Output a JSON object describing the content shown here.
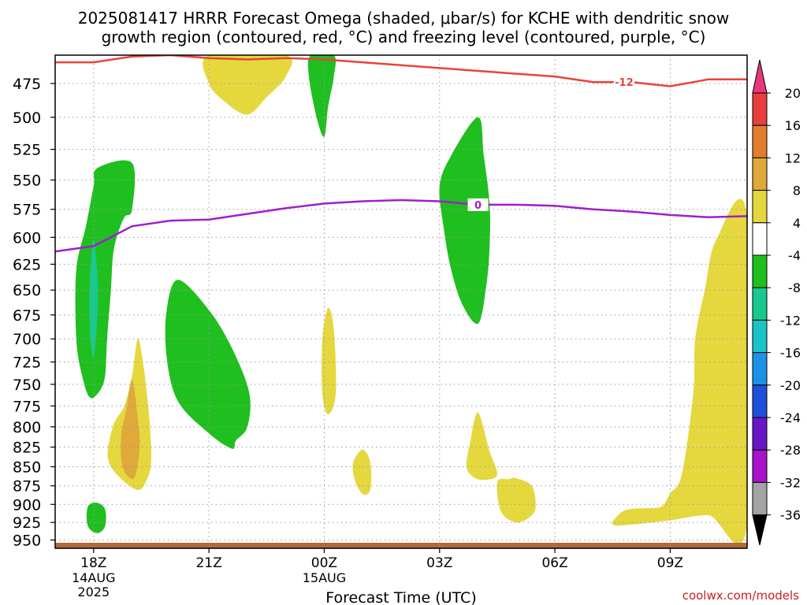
{
  "chart_data": {
    "type": "heatmap",
    "title": {
      "line1": "2025081417 HRRR Forecast Omega (shaded, μbar/s) for KCHE with dendritic snow",
      "line2": "growth region (contoured, red, °C) and freezing level (contoured, purple, °C)"
    },
    "xlabel": "Forecast Time (UTC)",
    "ylabel": "",
    "x_ticks": [
      "18Z",
      "21Z",
      "00Z",
      "03Z",
      "06Z",
      "09Z"
    ],
    "x_date_labels": [
      {
        "tick": "18Z",
        "lines": [
          "14AUG",
          "2025"
        ]
      },
      {
        "tick": "00Z",
        "lines": [
          "15AUG"
        ]
      }
    ],
    "xlim_hours": [
      -1,
      17
    ],
    "y_ticks": [
      475,
      500,
      525,
      550,
      575,
      600,
      625,
      650,
      675,
      700,
      725,
      750,
      775,
      800,
      825,
      850,
      875,
      900,
      925,
      950
    ],
    "ylim_mb": [
      455,
      962
    ],
    "y_scale": "log",
    "grid": true,
    "colorbar": {
      "labels": [
        "20",
        "16",
        "12",
        "8",
        "4",
        "-4",
        "-8",
        "-12",
        "-16",
        "-20",
        "-24",
        "-28",
        "-32",
        "-36"
      ],
      "colors": [
        "#e8387a",
        "#e83e3e",
        "#e37d2d",
        "#dfa93c",
        "#e5d83e",
        "#ffffff",
        "#1fbf1f",
        "#18c98f",
        "#19c3c8",
        "#1a93e6",
        "#1f4fd9",
        "#6a16c6",
        "#a812c9",
        "#a3a3a3",
        "#000000"
      ]
    },
    "series": [
      {
        "name": "-12",
        "color": "#e8443a",
        "label_at_hour": 13.8,
        "points": [
          [
            -1,
            460
          ],
          [
            0,
            460
          ],
          [
            1,
            456
          ],
          [
            2,
            455
          ],
          [
            3,
            457
          ],
          [
            4,
            458
          ],
          [
            5,
            457
          ],
          [
            6,
            458
          ],
          [
            7,
            460
          ],
          [
            8,
            462
          ],
          [
            9,
            464
          ],
          [
            10,
            466
          ],
          [
            11,
            468
          ],
          [
            12,
            470
          ],
          [
            13,
            474
          ],
          [
            14,
            474
          ],
          [
            15,
            477
          ],
          [
            16,
            472
          ],
          [
            17,
            472
          ]
        ]
      },
      {
        "name": "0",
        "color": "#a11ecc",
        "label_at_hour": 10.0,
        "points": [
          [
            -1,
            613
          ],
          [
            0,
            608
          ],
          [
            1,
            590
          ],
          [
            2,
            585
          ],
          [
            3,
            584
          ],
          [
            4,
            579
          ],
          [
            5,
            574
          ],
          [
            6,
            570
          ],
          [
            7,
            568
          ],
          [
            8,
            567
          ],
          [
            9,
            568
          ],
          [
            10,
            571
          ],
          [
            11,
            571
          ],
          [
            12,
            572
          ],
          [
            13,
            575
          ],
          [
            14,
            577
          ],
          [
            15,
            580
          ],
          [
            16,
            582
          ],
          [
            17,
            581
          ]
        ]
      }
    ],
    "shaded_regions": [
      {
        "value": 4,
        "color": "#e5d83e",
        "pts": [
          [
            3,
            455
          ],
          [
            5,
            455
          ],
          [
            5,
            470
          ],
          [
            4.5,
            485
          ],
          [
            4,
            498
          ],
          [
            3.4,
            488
          ],
          [
            3,
            475
          ]
        ]
      },
      {
        "value": 4,
        "color": "#e5d83e",
        "pts": [
          [
            1.15,
            700
          ],
          [
            1.3,
            730
          ],
          [
            1.45,
            790
          ],
          [
            1.5,
            840
          ],
          [
            1.4,
            865
          ],
          [
            1.1,
            880
          ],
          [
            0.4,
            845
          ],
          [
            0.5,
            800
          ],
          [
            0.8,
            775
          ],
          [
            1.0,
            740
          ]
        ]
      },
      {
        "value": 8,
        "color": "#dfa93c",
        "pts": [
          [
            1.0,
            745
          ],
          [
            1.15,
            790
          ],
          [
            1.2,
            825
          ],
          [
            1.05,
            865
          ],
          [
            0.75,
            850
          ],
          [
            0.72,
            810
          ],
          [
            0.85,
            780
          ]
        ]
      },
      {
        "value": 4,
        "color": "#e5d83e",
        "pts": [
          [
            6.1,
            668
          ],
          [
            6.25,
            690
          ],
          [
            6.3,
            760
          ],
          [
            6.1,
            785
          ],
          [
            5.95,
            760
          ],
          [
            5.95,
            700
          ]
        ]
      },
      {
        "value": 4,
        "color": "#e5d83e",
        "pts": [
          [
            7.0,
            828
          ],
          [
            7.2,
            845
          ],
          [
            7.2,
            880
          ],
          [
            7.0,
            886
          ],
          [
            6.8,
            868
          ],
          [
            6.75,
            845
          ]
        ]
      },
      {
        "value": 4,
        "color": "#e5d83e",
        "pts": [
          [
            10.0,
            783
          ],
          [
            10.3,
            830
          ],
          [
            10.5,
            860
          ],
          [
            10.2,
            867
          ],
          [
            9.9,
            864
          ],
          [
            9.7,
            850
          ],
          [
            9.8,
            818
          ]
        ]
      },
      {
        "value": 4,
        "color": "#e5d83e",
        "pts": [
          [
            11.0,
            865
          ],
          [
            11.4,
            875
          ],
          [
            11.5,
            900
          ],
          [
            11.4,
            915
          ],
          [
            11.0,
            925
          ],
          [
            10.6,
            910
          ],
          [
            10.5,
            870
          ],
          [
            10.8,
            866
          ]
        ]
      },
      {
        "value": 4,
        "color": "#e5d83e",
        "pts": [
          [
            17,
            582
          ],
          [
            16.2,
            602
          ],
          [
            15.9,
            650
          ],
          [
            15.65,
            700
          ],
          [
            15.6,
            760
          ],
          [
            15.3,
            860
          ],
          [
            15.0,
            885
          ],
          [
            14.8,
            902
          ],
          [
            14.5,
            905
          ],
          [
            14.0,
            906
          ],
          [
            13.7,
            912
          ],
          [
            13.5,
            928
          ],
          [
            14.0,
            928
          ],
          [
            15.0,
            922
          ],
          [
            16.0,
            915
          ],
          [
            17,
            928
          ]
        ]
      },
      {
        "value": -4,
        "color": "#1fbf1f",
        "pts": [
          [
            0.1,
            540
          ],
          [
            1.0,
            536
          ],
          [
            1.0,
            575
          ],
          [
            0.8,
            582
          ],
          [
            0.6,
            600
          ],
          [
            0.5,
            618
          ],
          [
            0.45,
            650
          ],
          [
            0.35,
            700
          ],
          [
            0.3,
            740
          ],
          [
            0.15,
            758
          ],
          [
            -0.1,
            765
          ],
          [
            -0.3,
            740
          ],
          [
            -0.45,
            700
          ],
          [
            -0.45,
            630
          ],
          [
            -0.2,
            590
          ],
          [
            0.0,
            555
          ]
        ]
      },
      {
        "value": -8,
        "color": "#18c98f",
        "pts": [
          [
            0.0,
            602
          ],
          [
            0.1,
            635
          ],
          [
            0.1,
            675
          ],
          [
            0.0,
            720
          ],
          [
            -0.1,
            690
          ],
          [
            -0.1,
            640
          ]
        ]
      },
      {
        "value": -4,
        "color": "#1fbf1f",
        "pts": [
          [
            0.1,
            898
          ],
          [
            0.3,
            907
          ],
          [
            0.3,
            930
          ],
          [
            0.1,
            940
          ],
          [
            -0.15,
            930
          ],
          [
            -0.15,
            903
          ]
        ]
      },
      {
        "value": -4,
        "color": "#1fbf1f",
        "pts": [
          [
            1.9,
            670
          ],
          [
            2.2,
            640
          ],
          [
            3.0,
            670
          ],
          [
            3.6,
            710
          ],
          [
            4.05,
            760
          ],
          [
            4.0,
            800
          ],
          [
            3.7,
            817
          ],
          [
            3.6,
            827
          ],
          [
            3.0,
            808
          ],
          [
            2.2,
            770
          ],
          [
            1.9,
            720
          ]
        ]
      },
      {
        "value": -4,
        "color": "#1fbf1f",
        "pts": [
          [
            5.65,
            455
          ],
          [
            6.25,
            455
          ],
          [
            6.25,
            470
          ],
          [
            6.1,
            492
          ],
          [
            6.0,
            515
          ],
          [
            5.8,
            500
          ],
          [
            5.6,
            470
          ]
        ]
      },
      {
        "value": -4,
        "color": "#1fbf1f",
        "pts": [
          [
            10.0,
            500
          ],
          [
            10.15,
            530
          ],
          [
            10.3,
            570
          ],
          [
            10.3,
            610
          ],
          [
            10.2,
            650
          ],
          [
            10.0,
            684
          ],
          [
            9.6,
            665
          ],
          [
            9.3,
            630
          ],
          [
            9.1,
            590
          ],
          [
            9.0,
            555
          ],
          [
            9.3,
            530
          ]
        ]
      }
    ],
    "ground_strip": {
      "color": "#b5683a"
    }
  },
  "credit": "coolwx.com/models"
}
